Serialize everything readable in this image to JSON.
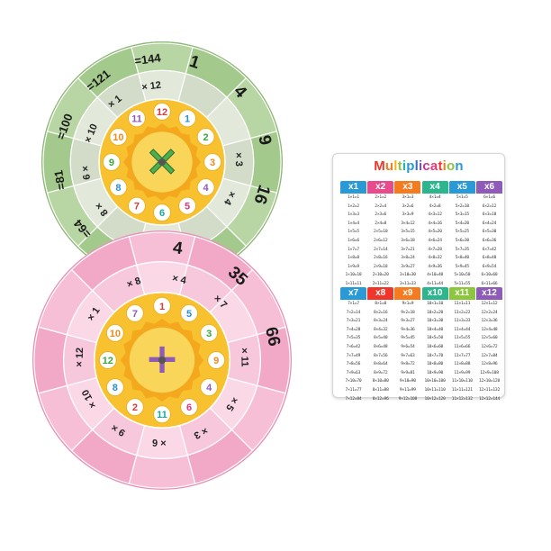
{
  "card": {
    "title": "Multiplication",
    "title_colors": [
      "#f0362b",
      "#f47b20",
      "#f7b21e",
      "#8cc63f",
      "#1fb5a8",
      "#2a9ad6",
      "#3b6fc0",
      "#7a4fb5",
      "#c2378f",
      "#e8387a",
      "#f0362b",
      "#f47b20",
      "#8cc63f",
      "#2a9ad6"
    ],
    "tables": [
      {
        "label": "x1",
        "color": "#2a9ad6",
        "lines": [
          "1×1=1",
          "1×2=2",
          "1×3=3",
          "1×4=4",
          "1×5=5",
          "1×6=6",
          "1×7=7",
          "1×8=8",
          "1×9=9",
          "1×10=10",
          "1×11=11",
          "1×12=12"
        ]
      },
      {
        "label": "x2",
        "color": "#e84a8c",
        "lines": [
          "2×1=2",
          "2×2=4",
          "2×3=6",
          "2×4=8",
          "2×5=10",
          "2×6=12",
          "2×7=14",
          "2×8=16",
          "2×9=18",
          "2×10=20",
          "2×11=22",
          "2×12=24"
        ]
      },
      {
        "label": "x3",
        "color": "#f47b20",
        "lines": [
          "3×1=3",
          "3×2=6",
          "3×3=9",
          "3×4=12",
          "3×5=15",
          "3×6=18",
          "3×7=21",
          "3×8=24",
          "3×9=27",
          "3×10=30",
          "3×11=33",
          "3×12=36"
        ]
      },
      {
        "label": "x4",
        "color": "#2db68e",
        "lines": [
          "4×1=4",
          "4×2=8",
          "4×3=12",
          "4×4=16",
          "4×5=20",
          "4×6=24",
          "4×7=28",
          "4×8=32",
          "4×9=36",
          "4×10=40",
          "4×11=44",
          "4×12=48"
        ]
      },
      {
        "label": "x5",
        "color": "#2a9ad6",
        "lines": [
          "5×1=5",
          "5×2=10",
          "5×3=15",
          "5×4=20",
          "5×5=25",
          "5×6=30",
          "5×7=35",
          "5×8=40",
          "5×9=45",
          "5×10=50",
          "5×11=55",
          "5×12=60"
        ]
      },
      {
        "label": "x6",
        "color": "#8e5bb8",
        "lines": [
          "6×1=6",
          "6×2=12",
          "6×3=18",
          "6×4=24",
          "6×5=30",
          "6×6=36",
          "6×7=42",
          "6×8=48",
          "6×9=54",
          "6×10=60",
          "6×11=66",
          "6×12=72"
        ]
      },
      {
        "label": "x7",
        "color": "#2a9ad6",
        "lines": [
          "7×1=7",
          "7×2=14",
          "7×3=21",
          "7×4=28",
          "7×5=35",
          "7×6=42",
          "7×7=49",
          "7×8=56",
          "7×9=63",
          "7×10=70",
          "7×11=77",
          "7×12=84"
        ]
      },
      {
        "label": "x8",
        "color": "#f0362b",
        "lines": [
          "8×1=8",
          "8×2=16",
          "8×3=24",
          "8×4=32",
          "8×5=40",
          "8×6=48",
          "8×7=56",
          "8×8=64",
          "8×9=72",
          "8×10=80",
          "8×11=88",
          "8×12=96"
        ]
      },
      {
        "label": "x9",
        "color": "#f47b20",
        "lines": [
          "9×1=9",
          "9×2=18",
          "9×3=27",
          "9×4=36",
          "9×5=45",
          "9×6=54",
          "9×7=63",
          "9×8=72",
          "9×9=81",
          "9×10=90",
          "9×11=99",
          "9×12=108"
        ]
      },
      {
        "label": "x10",
        "color": "#2db68e",
        "lines": [
          "10×1=10",
          "10×2=20",
          "10×3=30",
          "10×4=40",
          "10×5=50",
          "10×6=60",
          "10×7=70",
          "10×8=80",
          "10×9=90",
          "10×10=100",
          "10×11=110",
          "10×12=120"
        ]
      },
      {
        "label": "x11",
        "color": "#8cc63f",
        "lines": [
          "11×1=11",
          "11×2=22",
          "11×3=33",
          "11×4=44",
          "11×5=55",
          "11×6=66",
          "11×7=77",
          "11×8=88",
          "11×9=99",
          "11×10=110",
          "11×11=121",
          "11×12=132"
        ]
      },
      {
        "label": "x12",
        "color": "#8e5bb8",
        "lines": [
          "12×1=12",
          "12×2=24",
          "12×3=36",
          "12×4=48",
          "12×5=60",
          "12×6=72",
          "12×7=84",
          "12×8=96",
          "12×9=108",
          "12×10=120",
          "12×11=132",
          "12×12=144"
        ]
      }
    ]
  },
  "green_wheel": {
    "colors": {
      "outer": "#a3c98c",
      "outer_alt": "#b8d6a4",
      "middle": "#d2dcc8",
      "middle_alt": "#e2e8da",
      "inner": "#f7c12f",
      "center": "#f4a81d",
      "line": "#ffffff",
      "rim": "#8fb878"
    },
    "outer_labels": [
      {
        "text": "=144",
        "angle": -8
      },
      {
        "text": "1",
        "angle": 18
      },
      {
        "text": "4",
        "angle": 48
      },
      {
        "text": "9",
        "angle": 78
      },
      {
        "text": "16",
        "angle": 108
      },
      {
        "text": "=81",
        "angle": -100
      },
      {
        "text": "=64",
        "angle": -130
      },
      {
        "text": "=100",
        "angle": -70
      },
      {
        "text": "=121",
        "angle": -38
      }
    ],
    "middle_labels": [
      {
        "text": "× 12",
        "angle": -8
      },
      {
        "text": "× 1",
        "angle": -38
      },
      {
        "text": "× 10",
        "angle": -68
      },
      {
        "text": "6 ×",
        "angle": -98
      },
      {
        "text": "8 ×",
        "angle": -128
      },
      {
        "text": "× 3",
        "angle": 88
      },
      {
        "text": "× 4",
        "angle": 118
      }
    ],
    "inner_numbers": [
      "12",
      "1",
      "2",
      "3",
      "4",
      "5",
      "6",
      "7",
      "8",
      "9",
      "10",
      "11"
    ],
    "center_symbol": "×"
  },
  "pink_wheel": {
    "colors": {
      "outer": "#f2a9c8",
      "outer_alt": "#f6bfd6",
      "middle": "#f7c8dc",
      "middle_alt": "#fad8e6",
      "inner": "#f7c12f",
      "center": "#f4a81d",
      "line": "#ffffff",
      "rim": "#e893b6"
    },
    "outer_labels": [
      {
        "text": "4",
        "angle": 8
      },
      {
        "text": "35",
        "angle": 42
      },
      {
        "text": "66",
        "angle": 78
      }
    ],
    "middle_labels": [
      {
        "text": "× 8",
        "angle": -20
      },
      {
        "text": "× 4",
        "angle": 12
      },
      {
        "text": "× 7",
        "angle": 45
      },
      {
        "text": "× 11",
        "angle": 88
      },
      {
        "text": "× 5",
        "angle": 122
      },
      {
        "text": "× 3",
        "angle": 152
      },
      {
        "text": "× 6",
        "angle": 182
      },
      {
        "text": "9 ×",
        "angle": -148
      },
      {
        "text": "× 10",
        "angle": -118
      },
      {
        "text": "× 12",
        "angle": -88
      },
      {
        "text": "× 1",
        "angle": -56
      }
    ],
    "inner_numbers": [
      "1",
      "5",
      "3",
      "9",
      "4",
      "6",
      "11",
      "2",
      "8",
      "12",
      "10",
      "7"
    ],
    "center_symbol": "+"
  }
}
